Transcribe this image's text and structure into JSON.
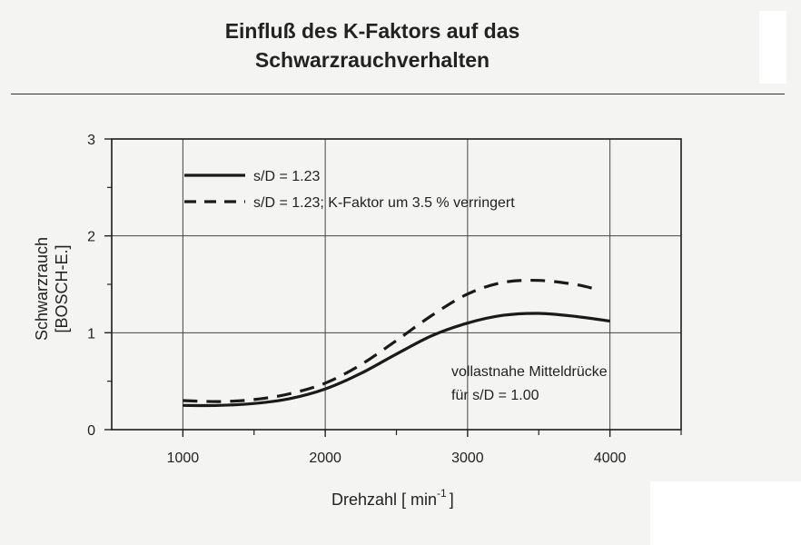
{
  "title_line1": "Einfluß des K-Faktors auf das",
  "title_line2": "Schwarzrauchverhalten",
  "chart_data": {
    "type": "line",
    "xlabel": "Drehzahl [ min",
    "xlabel_sup": "-1",
    "xlabel_close": "]",
    "ylabel_line1": "Schwarzrauch",
    "ylabel_line2": "[BOSCH-E.]",
    "xlim": [
      500,
      4500
    ],
    "ylim": [
      0,
      3
    ],
    "xticks": [
      1000,
      2000,
      3000,
      4000
    ],
    "yticks": [
      0,
      1,
      2,
      3
    ],
    "grid": true,
    "legend_position": "top-left",
    "annotation_line1": "vollastnahe Mitteldrücke",
    "annotation_line2": "für s/D = 1.00",
    "series": [
      {
        "name": "s/D = 1.23",
        "style": "solid",
        "color": "#1a1a1a",
        "x": [
          1000,
          1250,
          1500,
          1750,
          2000,
          2250,
          2500,
          2750,
          3000,
          3250,
          3500,
          3750,
          4000
        ],
        "y": [
          0.25,
          0.25,
          0.27,
          0.32,
          0.42,
          0.58,
          0.78,
          0.97,
          1.1,
          1.18,
          1.2,
          1.17,
          1.12
        ]
      },
      {
        "name": "s/D = 1.23; K-Faktor um 3.5 % verringert",
        "style": "dashed",
        "color": "#1a1a1a",
        "x": [
          1000,
          1250,
          1500,
          1750,
          2000,
          2250,
          2500,
          2750,
          3000,
          3250,
          3500,
          3750,
          3900
        ],
        "y": [
          0.3,
          0.29,
          0.31,
          0.37,
          0.48,
          0.67,
          0.92,
          1.18,
          1.4,
          1.52,
          1.54,
          1.5,
          1.45
        ]
      }
    ]
  }
}
